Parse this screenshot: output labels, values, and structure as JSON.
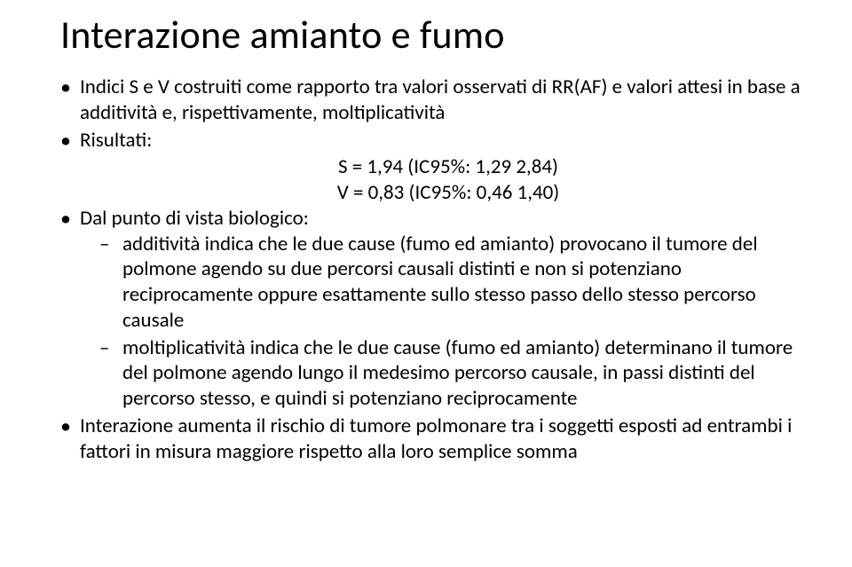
{
  "title": "Interazione amianto e fumo",
  "bullets": {
    "b1": "Indici S e V costruiti come rapporto tra valori osservati di RR(AF) e valori attesi in base a additività e, rispettivamente, moltiplicatività",
    "b2": "Risultati:",
    "c1": "S = 1,94 (IC95%: 1,29 2,84)",
    "c2": "V = 0,83 (IC95%: 0,46 1,40)",
    "b3": "Dal punto di vista biologico:",
    "s1": "additività indica che le due cause (fumo ed amianto) provocano il tumore del polmone agendo su due percorsi causali distinti e non si potenziano reciprocamente oppure esattamente sullo stesso passo dello stesso percorso causale",
    "s2": "moltiplicatività indica che le due cause (fumo ed amianto) determinano il tumore del polmone agendo lungo il medesimo percorso causale, in passi distinti del percorso stesso, e quindi si potenziano reciprocamente",
    "b4": "Interazione aumenta il rischio di tumore polmonare tra i soggetti esposti ad entrambi i fattori in misura maggiore rispetto alla loro semplice somma"
  },
  "colors": {
    "background": "#ffffff",
    "text": "#000000"
  },
  "font": {
    "family": "Calibri",
    "title_size_pt": 33,
    "body_size_pt": 17
  }
}
